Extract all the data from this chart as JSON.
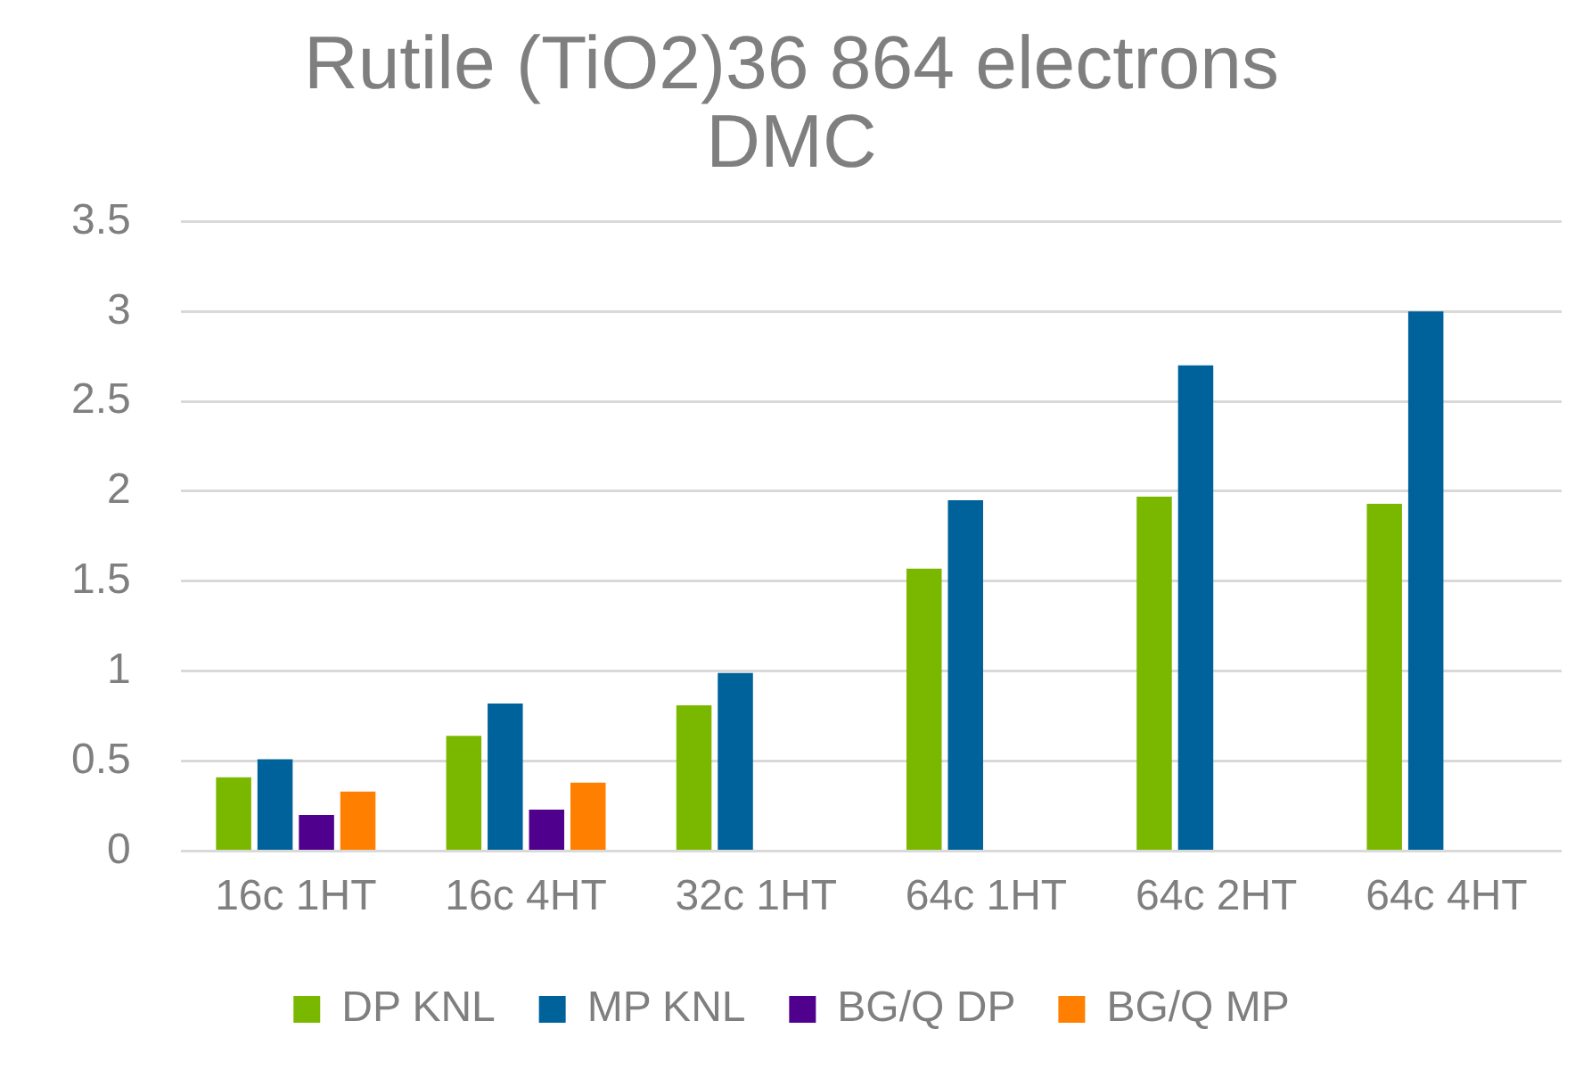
{
  "chart_data": {
    "type": "bar",
    "title": "Rutile (TiO2)36 864 electrons\nDMC",
    "categories": [
      "16c 1HT",
      "16c 4HT",
      "32c 1HT",
      "64c 1HT",
      "64c 2HT",
      "64c 4HT"
    ],
    "series": [
      {
        "name": "DP KNL",
        "color": "#7ab800",
        "values": [
          0.41,
          0.64,
          0.81,
          1.57,
          1.97,
          1.93
        ]
      },
      {
        "name": "MP KNL",
        "color": "#00629b",
        "values": [
          0.51,
          0.82,
          0.99,
          1.95,
          2.7,
          3.0
        ]
      },
      {
        "name": "BG/Q DP",
        "color": "#4f008c",
        "values": [
          0.2,
          0.23,
          null,
          null,
          null,
          null
        ]
      },
      {
        "name": "BG/Q MP",
        "color": "#ff7f00",
        "values": [
          0.33,
          0.38,
          null,
          null,
          null,
          null
        ]
      }
    ],
    "ylim": [
      0,
      3.5
    ],
    "yticks": [
      0,
      0.5,
      1,
      1.5,
      2,
      2.5,
      3,
      3.5
    ],
    "grid": "y",
    "legend": "bottom"
  }
}
